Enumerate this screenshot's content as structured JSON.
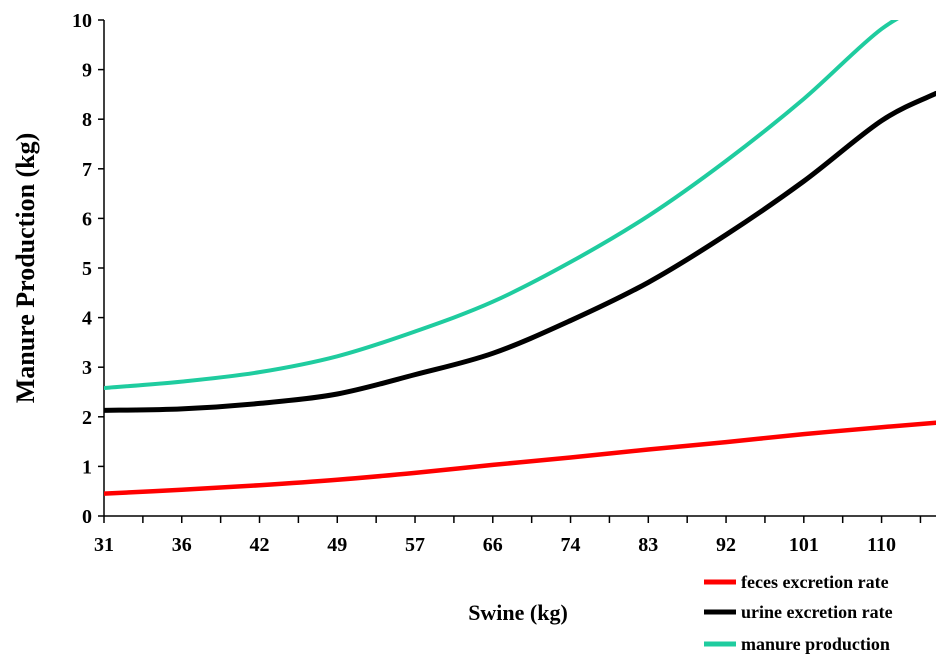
{
  "chart_data": {
    "type": "line",
    "title": "",
    "xlabel": "Swine (kg)",
    "ylabel": "Manure Production (kg)",
    "x_tick_labels": [
      "31",
      "36",
      "42",
      "49",
      "57",
      "66",
      "74",
      "83",
      "92",
      "101",
      "110"
    ],
    "x": [
      31,
      36,
      42,
      49,
      57,
      66,
      74,
      83,
      92,
      101,
      110,
      113
    ],
    "ylim": [
      0,
      10
    ],
    "y_ticks": [
      0,
      1,
      2,
      3,
      4,
      5,
      6,
      7,
      8,
      9,
      10
    ],
    "grid": false,
    "legend_position": "bottom-right",
    "series": [
      {
        "name": "feces excretion rate",
        "color": "#ff0000",
        "values": [
          0.45,
          0.53,
          0.62,
          0.73,
          0.87,
          1.03,
          1.18,
          1.34,
          1.49,
          1.65,
          1.79,
          1.88
        ]
      },
      {
        "name": "urine excretion rate",
        "color": "#000000",
        "values": [
          2.13,
          2.16,
          2.27,
          2.46,
          2.85,
          3.28,
          3.94,
          4.71,
          5.67,
          6.75,
          7.97,
          8.52
        ]
      },
      {
        "name": "manure production",
        "color": "#1fcc9f",
        "values": [
          2.58,
          2.71,
          2.9,
          3.22,
          3.72,
          4.32,
          5.12,
          6.05,
          7.16,
          8.41,
          9.82,
          10.4
        ]
      }
    ]
  }
}
